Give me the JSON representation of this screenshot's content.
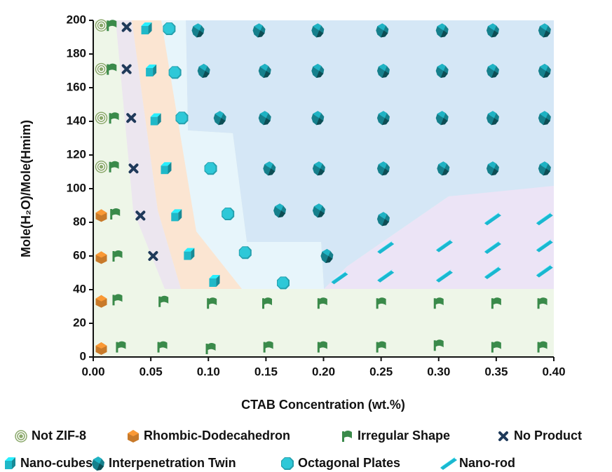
{
  "chart_data": {
    "type": "scatter",
    "xlabel": "CTAB Concentration (wt.%)",
    "ylabel": "Mole(H₂O)/Mole(Hmim)",
    "xlim": [
      0,
      0.4
    ],
    "ylim": [
      0,
      200
    ],
    "xticks": [
      {
        "value": 0,
        "label": "0.00"
      },
      0.05,
      {
        "value": 0.1,
        "label": "0.10"
      },
      0.15,
      {
        "value": 0.2,
        "label": "0.20"
      },
      0.25,
      {
        "value": 0.3,
        "label": "0.30"
      },
      0.35,
      {
        "value": 0.4,
        "label": "0.40"
      }
    ],
    "yticks": [
      0,
      20,
      40,
      60,
      80,
      100,
      120,
      140,
      160,
      180,
      200
    ],
    "series": [
      {
        "name": "Not ZIF-8",
        "marker": "target",
        "color": "#8aa86a",
        "x": [
          0.007,
          0.007,
          0.007,
          0.007
        ],
        "y": [
          197,
          171,
          142,
          113
        ]
      },
      {
        "name": "Rhombic-Dodecahedron",
        "marker": "hexagon",
        "color": "#c87a2a",
        "x": [
          0.007,
          0.007,
          0.007,
          0.007
        ],
        "y": [
          84,
          59,
          33,
          5
        ]
      },
      {
        "name": "Irregular Shape",
        "marker": "flag",
        "color": "#3a8a4a",
        "x": [
          0.016,
          0.016,
          0.018,
          0.018,
          0.019,
          0.021,
          0.021,
          0.024,
          0.061,
          0.06,
          0.103,
          0.102,
          0.151,
          0.152,
          0.199,
          0.199,
          0.25,
          0.25,
          0.3,
          0.3,
          0.35,
          0.35,
          0.39,
          0.39
        ],
        "y": [
          197,
          171,
          142,
          113,
          85,
          60,
          34,
          6,
          33,
          6,
          32,
          5,
          32,
          6,
          32,
          6,
          32,
          6,
          32,
          7,
          32,
          6,
          32,
          6
        ]
      },
      {
        "name": "No Product",
        "marker": "cross",
        "color": "#1f3a5a",
        "x": [
          0.029,
          0.029,
          0.033,
          0.035,
          0.041,
          0.052
        ],
        "y": [
          196,
          171,
          142,
          112,
          84,
          60
        ]
      },
      {
        "name": "Nano-cubes",
        "marker": "cube",
        "color": "#1fb8c8",
        "x": [
          0.046,
          0.05,
          0.054,
          0.063,
          0.072,
          0.083,
          0.105
        ],
        "y": [
          195,
          170,
          141,
          112,
          84,
          61,
          45
        ]
      },
      {
        "name": "Interpenetration Twin",
        "marker": "twin",
        "color": "#16808c",
        "x": [
          0.091,
          0.144,
          0.195,
          0.251,
          0.303,
          0.347,
          0.392,
          0.096,
          0.149,
          0.195,
          0.252,
          0.303,
          0.347,
          0.392,
          0.11,
          0.149,
          0.195,
          0.252,
          0.303,
          0.347,
          0.392,
          0.153,
          0.196,
          0.252,
          0.304,
          0.347,
          0.392,
          0.162,
          0.196,
          0.252,
          0.203
        ],
        "y": [
          194,
          194,
          194,
          194,
          194,
          194,
          194,
          170,
          170,
          170,
          170,
          170,
          170,
          170,
          142,
          142,
          142,
          142,
          142,
          142,
          142,
          112,
          112,
          112,
          112,
          112,
          112,
          87,
          87,
          82,
          60
        ]
      },
      {
        "name": "Octagonal Plates",
        "marker": "octagon",
        "color": "#2ec8d8",
        "x": [
          0.066,
          0.071,
          0.077,
          0.102,
          0.117,
          0.132,
          0.165
        ],
        "y": [
          195,
          169,
          142,
          112,
          85,
          62,
          44
        ]
      },
      {
        "name": "Nano-rod",
        "marker": "rod",
        "color": "#1ab8d0",
        "x": [
          0.214,
          0.254,
          0.254,
          0.305,
          0.305,
          0.347,
          0.347,
          0.347,
          0.392,
          0.392,
          0.392
        ],
        "y": [
          47,
          65,
          48,
          66,
          48,
          82,
          65,
          50,
          82,
          66,
          51
        ]
      }
    ]
  }
}
